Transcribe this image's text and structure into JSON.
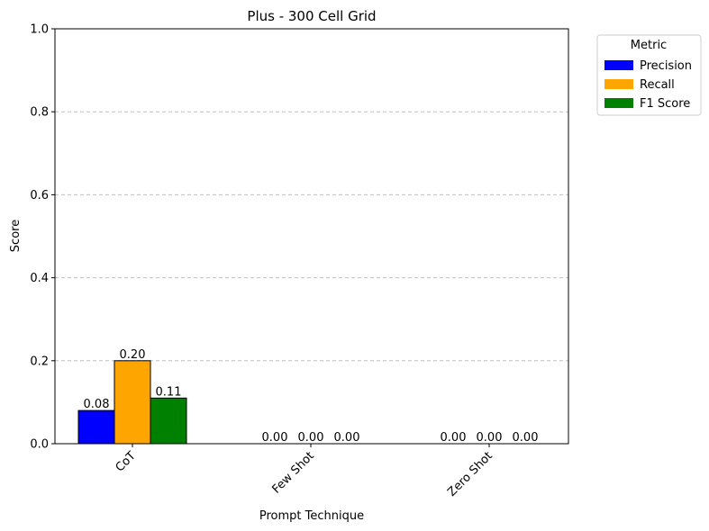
{
  "chart_data": {
    "type": "bar",
    "title": "Plus - 300 Cell Grid",
    "xlabel": "Prompt Technique",
    "ylabel": "Score",
    "ylim": [
      0,
      1
    ],
    "yticks": [
      "0.0",
      "0.2",
      "0.4",
      "0.6",
      "0.8",
      "1.0"
    ],
    "categories": [
      "CoT",
      "Few Shot",
      "Zero Shot"
    ],
    "series": [
      {
        "name": "Precision",
        "color": "#0000ff",
        "values": [
          0.08,
          0.0,
          0.0
        ],
        "labels": [
          "0.08",
          "0.00",
          "0.00"
        ]
      },
      {
        "name": "Recall",
        "color": "#ffa500",
        "values": [
          0.2,
          0.0,
          0.0
        ],
        "labels": [
          "0.20",
          "0.00",
          "0.00"
        ]
      },
      {
        "name": "F1 Score",
        "color": "#008000",
        "values": [
          0.11,
          0.0,
          0.0
        ],
        "labels": [
          "0.11",
          "0.00",
          "0.00"
        ]
      }
    ],
    "grid": "y-dashed",
    "legend": {
      "title": "Metric",
      "placement": "outside-top-right"
    }
  }
}
